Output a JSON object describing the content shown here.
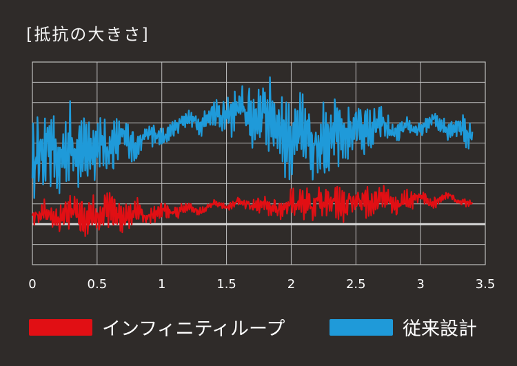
{
  "chart_data": {
    "type": "line",
    "title": "[抵抗の大きさ]",
    "xlabel": "",
    "ylabel": "",
    "xlim": [
      0,
      3.5
    ],
    "ylim": [
      0,
      10
    ],
    "x_ticks": [
      "0",
      "0.5",
      "1",
      "1.5",
      "2",
      "2.5",
      "3",
      "3.5"
    ],
    "grid": true,
    "legend_position": "bottom",
    "reference_line": 2,
    "series": [
      {
        "name": "インフィニティループ",
        "color": "#e10f14",
        "x": [
          0,
          0.1,
          0.2,
          0.3,
          0.4,
          0.5,
          0.6,
          0.7,
          0.8,
          0.9,
          1.0,
          1.1,
          1.2,
          1.3,
          1.4,
          1.5,
          1.6,
          1.7,
          1.8,
          1.9,
          2.0,
          2.1,
          2.2,
          2.3,
          2.4,
          2.5,
          2.6,
          2.7,
          2.8,
          2.9,
          3.0,
          3.1,
          3.2,
          3.3,
          3.4
        ],
        "values": [
          2.4,
          2.6,
          2.3,
          2.7,
          2.2,
          2.5,
          2.8,
          2.3,
          2.6,
          2.4,
          2.7,
          2.5,
          2.9,
          2.6,
          3.1,
          2.8,
          3.2,
          2.9,
          3.0,
          2.7,
          3.1,
          2.9,
          3.0,
          3.2,
          2.8,
          3.3,
          3.0,
          3.4,
          2.9,
          3.2,
          3.3,
          3.0,
          3.5,
          3.1,
          3.0
        ]
      },
      {
        "name": "従来設計",
        "color": "#1f9ad9",
        "x": [
          0,
          0.1,
          0.2,
          0.3,
          0.4,
          0.5,
          0.6,
          0.7,
          0.8,
          0.9,
          1.0,
          1.1,
          1.2,
          1.3,
          1.4,
          1.5,
          1.6,
          1.7,
          1.8,
          1.9,
          2.0,
          2.1,
          2.2,
          2.3,
          2.4,
          2.5,
          2.6,
          2.7,
          2.8,
          2.9,
          3.0,
          3.1,
          3.2,
          3.3,
          3.4
        ],
        "values": [
          5.2,
          5.8,
          5.0,
          6.1,
          5.5,
          6.0,
          5.7,
          6.3,
          5.9,
          6.5,
          6.2,
          6.8,
          7.3,
          6.9,
          7.6,
          7.2,
          7.8,
          7.1,
          7.5,
          6.9,
          6.1,
          6.4,
          6.0,
          6.6,
          6.3,
          6.9,
          6.5,
          7.0,
          6.4,
          6.8,
          6.6,
          7.2,
          6.7,
          6.9,
          6.2
        ]
      }
    ]
  }
}
